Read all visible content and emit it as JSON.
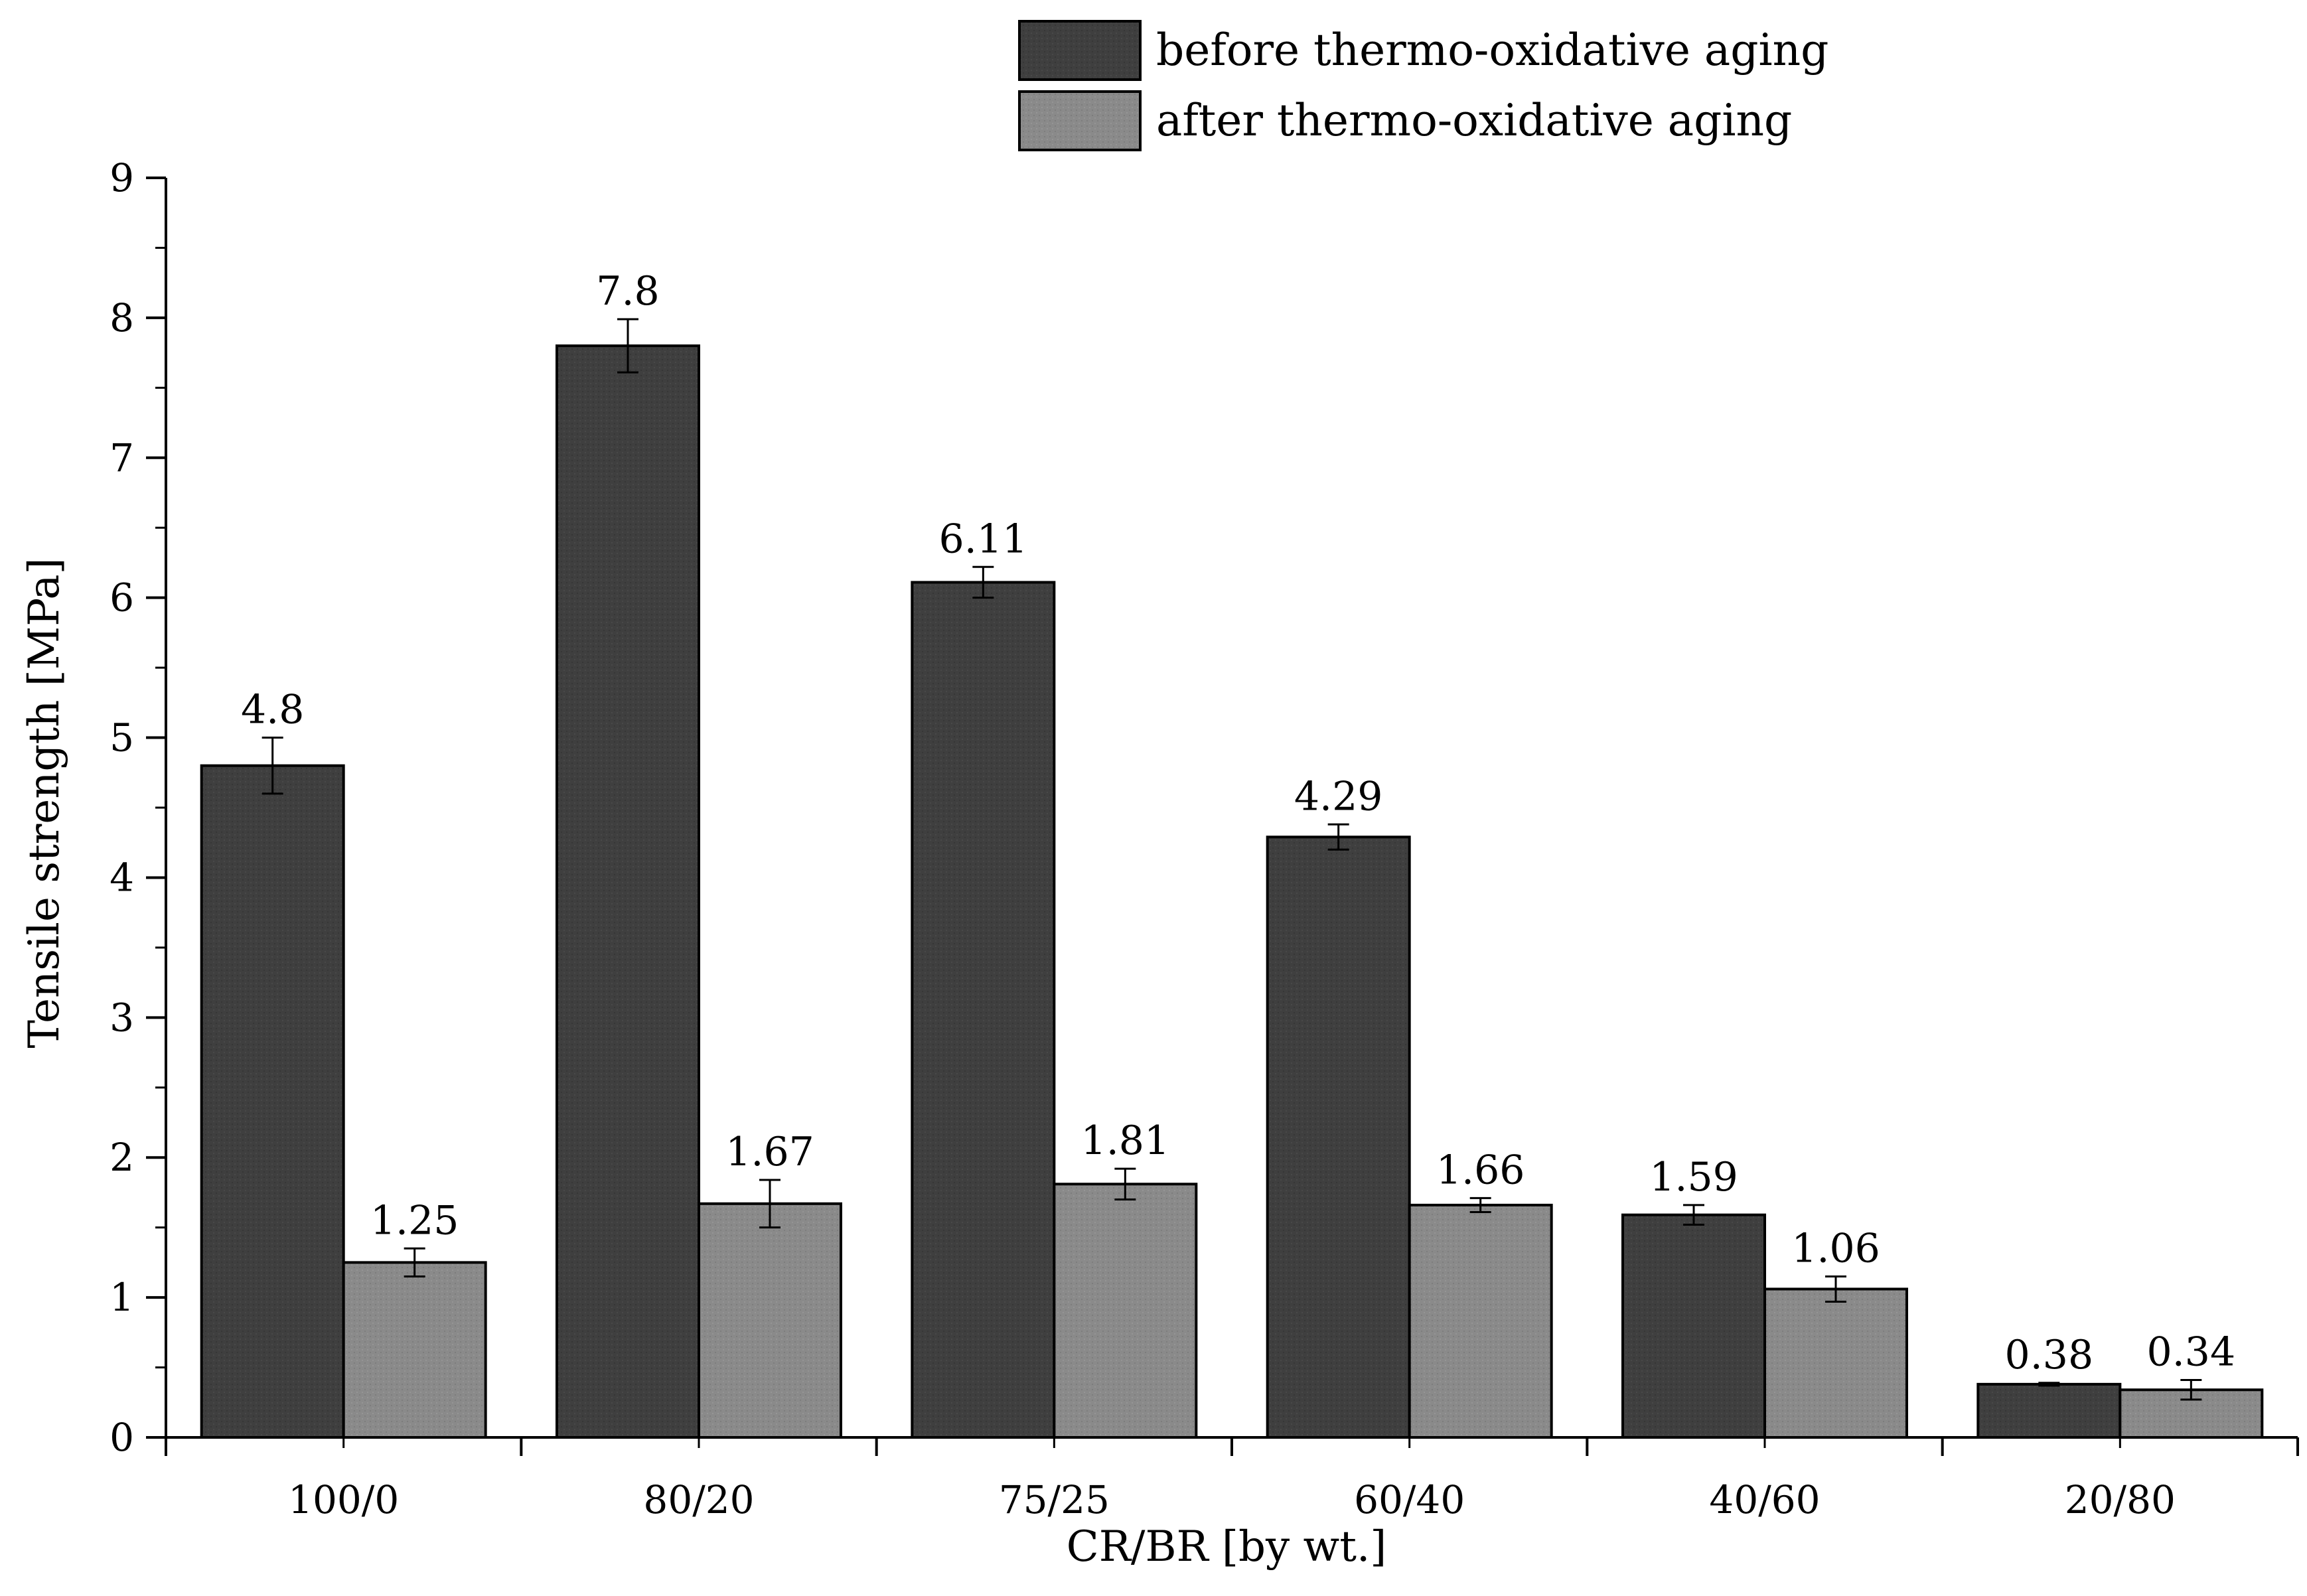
{
  "chart_data": {
    "type": "bar",
    "xlabel": "CR/BR [by wt.]",
    "ylabel": "Tensile strength [MPa]",
    "ylim": [
      0,
      9
    ],
    "yticks": [
      "0",
      "1",
      "2",
      "3",
      "4",
      "5",
      "6",
      "7",
      "8",
      "9"
    ],
    "categories": [
      "100/0",
      "80/20",
      "75/25",
      "60/40",
      "40/60",
      "20/80"
    ],
    "legend_position": "top",
    "grid": false,
    "series": [
      {
        "name": "before thermo-oxidative aging",
        "color": "#3f3f3f",
        "values": [
          4.8,
          7.8,
          6.11,
          4.29,
          1.59,
          0.38
        ],
        "errors": [
          0.2,
          0.19,
          0.11,
          0.09,
          0.07,
          0.01
        ],
        "labels": [
          "4.8",
          "7.8",
          "6.11",
          "4.29",
          "1.59",
          "0.38"
        ]
      },
      {
        "name": "after thermo-oxidative aging",
        "color": "#8a8a8a",
        "values": [
          1.25,
          1.67,
          1.81,
          1.66,
          1.06,
          0.34
        ],
        "errors": [
          0.1,
          0.17,
          0.11,
          0.05,
          0.09,
          0.07
        ],
        "labels": [
          "1.25",
          "1.67",
          "1.81",
          "1.66",
          "1.06",
          "0.34"
        ]
      }
    ]
  }
}
